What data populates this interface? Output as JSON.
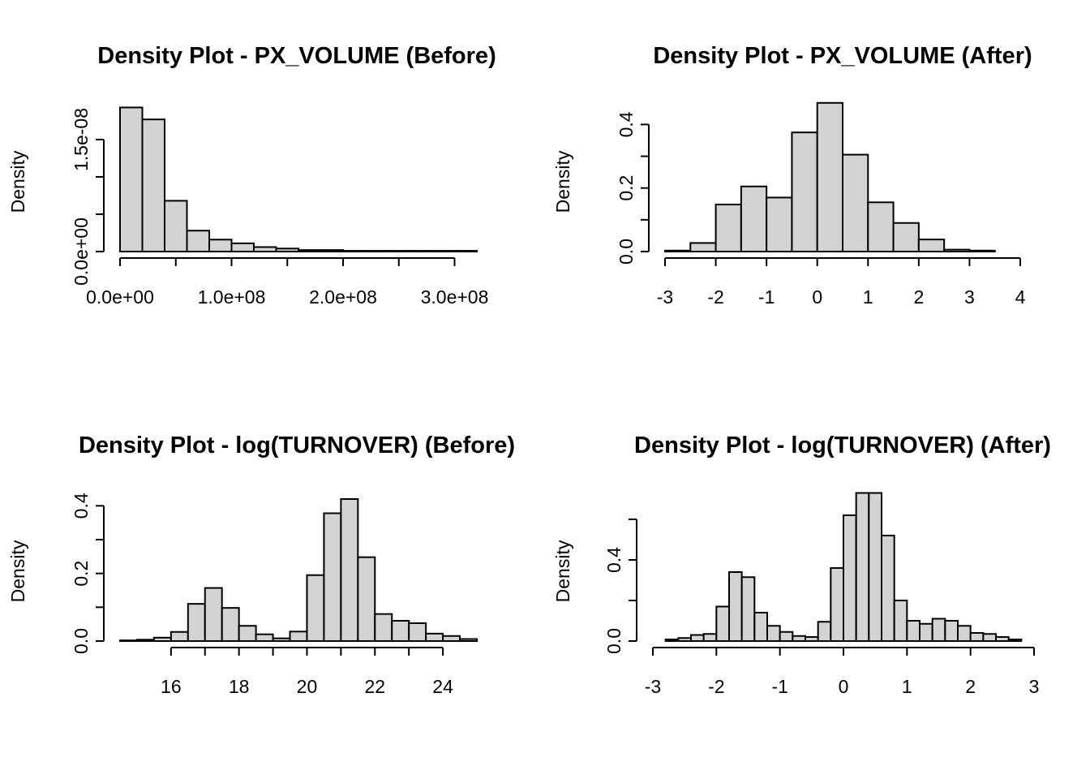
{
  "chart_data": [
    {
      "type": "bar",
      "title": "Density Plot -  PX_VOLUME (Before)",
      "xlabel": "",
      "ylabel": "Density",
      "xlim": [
        0,
        320000000
      ],
      "ylim": [
        0,
        2e-08
      ],
      "x_ticks": [
        0,
        100000000,
        200000000,
        300000000
      ],
      "x_tick_labels": [
        "0.0e+00",
        "1.0e+08",
        "2.0e+08",
        "3.0e+08"
      ],
      "y_ticks": [
        0,
        5e-09,
        1e-08,
        1.5e-08
      ],
      "y_tick_labels": [
        "0.0e+00",
        "",
        "",
        "1.5e-08"
      ],
      "bin_edges": [
        0,
        20000000,
        40000000,
        60000000,
        80000000,
        100000000,
        120000000,
        140000000,
        160000000,
        180000000,
        200000000,
        220000000,
        240000000,
        260000000,
        280000000,
        300000000,
        320000000
      ],
      "values": [
        1.93e-08,
        1.77e-08,
        6.8e-09,
        2.8e-09,
        1.6e-09,
        1.1e-09,
        6e-10,
        4e-10,
        2e-10,
        2e-10,
        1e-10,
        1e-10,
        1e-10,
        1e-10,
        1e-10,
        1e-10
      ]
    },
    {
      "type": "bar",
      "title": "Density Plot -  PX_VOLUME (After)",
      "xlabel": "",
      "ylabel": "Density",
      "xlim": [
        -3,
        4
      ],
      "ylim": [
        0,
        0.47
      ],
      "x_ticks": [
        -3,
        -2,
        -1,
        0,
        1,
        2,
        3,
        4
      ],
      "x_tick_labels": [
        "-3",
        "-2",
        "-1",
        "0",
        "1",
        "2",
        "3",
        "4"
      ],
      "y_ticks": [
        0,
        0.1,
        0.2,
        0.3,
        0.4
      ],
      "y_tick_labels": [
        "0.0",
        "",
        "0.2",
        "",
        "0.4"
      ],
      "bin_edges": [
        -3,
        -2.5,
        -2,
        -1.5,
        -1,
        -0.5,
        0,
        0.5,
        1,
        1.5,
        2,
        2.5,
        3,
        3.5
      ],
      "values": [
        0.003,
        0.027,
        0.148,
        0.205,
        0.17,
        0.375,
        0.468,
        0.305,
        0.155,
        0.09,
        0.038,
        0.006,
        0.003
      ]
    },
    {
      "type": "bar",
      "title": "Density Plot -  log(TURNOVER) (Before)",
      "xlabel": "",
      "ylabel": "Density",
      "xlim": [
        14.5,
        25
      ],
      "ylim": [
        0,
        0.42
      ],
      "x_ticks": [
        16,
        18,
        20,
        22,
        24
      ],
      "x_tick_labels": [
        "16",
        "18",
        "20",
        "22",
        "24"
      ],
      "y_ticks": [
        0,
        0.1,
        0.2,
        0.3,
        0.4
      ],
      "y_tick_labels": [
        "0.0",
        "",
        "0.2",
        "",
        "0.4"
      ],
      "bin_edges": [
        14.5,
        15,
        15.5,
        16,
        16.5,
        17,
        17.5,
        18,
        18.5,
        19,
        19.5,
        20,
        20.5,
        21,
        21.5,
        22,
        22.5,
        23,
        23.5,
        24,
        24.5,
        25
      ],
      "values": [
        0.002,
        0.004,
        0.01,
        0.027,
        0.11,
        0.157,
        0.098,
        0.045,
        0.02,
        0.008,
        0.028,
        0.195,
        0.378,
        0.42,
        0.248,
        0.08,
        0.06,
        0.053,
        0.022,
        0.015,
        0.006
      ]
    },
    {
      "type": "bar",
      "title": "Density Plot -  log(TURNOVER) (After)",
      "xlabel": "",
      "ylabel": "Density",
      "xlim": [
        -3,
        3
      ],
      "ylim": [
        0,
        0.7
      ],
      "x_ticks": [
        -3,
        -2,
        -1,
        0,
        1,
        2,
        3
      ],
      "x_tick_labels": [
        "-3",
        "-2",
        "-1",
        "0",
        "1",
        "2",
        "3"
      ],
      "y_ticks": [
        0,
        0.2,
        0.4,
        0.6
      ],
      "y_tick_labels": [
        "0.0",
        "",
        "0.4",
        ""
      ],
      "bin_edges": [
        -2.8,
        -2.6,
        -2.4,
        -2.2,
        -2,
        -1.8,
        -1.6,
        -1.4,
        -1.2,
        -1,
        -0.8,
        -0.6,
        -0.4,
        -0.2,
        0,
        0.2,
        0.4,
        0.6,
        0.8,
        1,
        1.2,
        1.4,
        1.6,
        1.8,
        2,
        2.2,
        2.4,
        2.6,
        2.8
      ],
      "values": [
        0.008,
        0.015,
        0.03,
        0.035,
        0.17,
        0.34,
        0.315,
        0.14,
        0.075,
        0.045,
        0.025,
        0.02,
        0.095,
        0.36,
        0.62,
        0.73,
        0.73,
        0.52,
        0.2,
        0.1,
        0.085,
        0.11,
        0.1,
        0.075,
        0.04,
        0.035,
        0.02,
        0.008
      ]
    }
  ]
}
